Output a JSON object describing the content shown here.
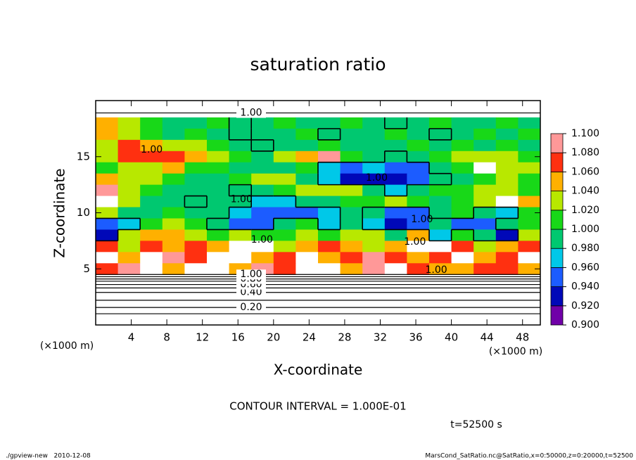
{
  "chart_data": {
    "type": "contour",
    "title": "saturation ratio",
    "x_label": "X-coordinate",
    "y_label": "Z-coordinate",
    "x_unit": "(×1000 m)",
    "y_unit": "(×1000 m)",
    "xlim": [
      0,
      50
    ],
    "ylim": [
      0,
      20
    ],
    "xticks": [
      4,
      8,
      12,
      16,
      20,
      24,
      28,
      32,
      36,
      40,
      44,
      48
    ],
    "yticks": [
      5,
      10,
      15
    ],
    "x": [
      1.25,
      3.75,
      6.25,
      8.75,
      11.25,
      13.75,
      16.25,
      18.75,
      21.25,
      23.75,
      26.25,
      28.75,
      31.25,
      33.75,
      36.25,
      38.75,
      41.25,
      43.75,
      46.25,
      48.75
    ],
    "y": [
      18,
      17,
      16,
      15,
      14,
      13,
      12,
      11,
      10,
      9,
      8,
      7,
      6,
      5
    ],
    "values": [
      [
        1.05,
        1.03,
        1.01,
        1.0,
        1.0,
        1.01,
        0.99,
        1.0,
        1.01,
        1.0,
        1.0,
        1.01,
        1.0,
        0.99,
        1.0,
        1.01,
        1.0,
        1.0,
        1.01,
        1.0
      ],
      [
        1.06,
        1.04,
        1.02,
        1.0,
        1.01,
        1.0,
        0.99,
        1.0,
        1.0,
        1.01,
        0.99,
        1.0,
        1.0,
        1.01,
        1.0,
        0.99,
        1.0,
        1.01,
        1.0,
        1.01
      ],
      [
        1.04,
        1.07,
        1.05,
        1.03,
        1.03,
        1.01,
        1.0,
        0.99,
        1.0,
        1.0,
        1.01,
        1.0,
        1.0,
        1.0,
        1.01,
        1.0,
        1.02,
        1.0,
        1.01,
        1.0
      ],
      [
        1.03,
        1.07,
        1.08,
        1.07,
        1.06,
        1.03,
        1.01,
        1.0,
        1.03,
        1.05,
        1.09,
        1.01,
        1.0,
        0.99,
        1.0,
        1.01,
        1.03,
        1.04,
        1.03,
        1.02
      ],
      [
        1.02,
        1.03,
        1.04,
        1.05,
        1.02,
        1.01,
        1.0,
        1.0,
        1.0,
        1.02,
        0.97,
        0.96,
        0.97,
        0.95,
        0.96,
        1.0,
        1.01,
        1.12,
        1.03,
        1.04
      ],
      [
        1.05,
        1.04,
        1.03,
        1.01,
        1.0,
        1.0,
        1.02,
        1.03,
        1.03,
        1.0,
        0.98,
        0.94,
        0.93,
        0.94,
        0.96,
        0.99,
        1.0,
        1.02,
        1.03,
        1.01
      ],
      [
        1.09,
        1.04,
        1.01,
        1.0,
        1.0,
        1.0,
        0.99,
        1.0,
        1.02,
        1.03,
        1.04,
        1.03,
        1.0,
        0.98,
        1.0,
        1.01,
        1.02,
        1.04,
        1.03,
        1.02
      ],
      [
        1.12,
        1.04,
        1.0,
        1.0,
        0.99,
        1.0,
        1.0,
        0.98,
        0.97,
        1.0,
        1.0,
        1.01,
        1.02,
        1.03,
        1.01,
        1.0,
        1.01,
        1.03,
        1.12,
        1.05
      ],
      [
        1.03,
        1.0,
        1.0,
        1.01,
        1.0,
        1.0,
        0.98,
        0.96,
        0.95,
        0.96,
        0.97,
        1.0,
        0.99,
        0.95,
        0.96,
        1.0,
        1.01,
        0.99,
        0.98,
        1.02
      ],
      [
        0.95,
        0.97,
        1.02,
        1.03,
        1.01,
        0.99,
        0.95,
        0.96,
        1.0,
        1.02,
        0.98,
        1.0,
        0.97,
        0.93,
        0.96,
        0.99,
        0.96,
        0.95,
        1.0,
        1.01
      ],
      [
        0.93,
        1.04,
        1.05,
        1.06,
        1.03,
        1.02,
        1.04,
        1.01,
        1.02,
        1.03,
        1.02,
        1.04,
        1.03,
        1.0,
        1.06,
        0.98,
        1.02,
        0.99,
        0.94,
        1.04
      ],
      [
        1.07,
        1.03,
        1.08,
        1.06,
        1.07,
        1.06,
        1.12,
        1.12,
        1.03,
        1.05,
        1.08,
        1.06,
        1.04,
        1.06,
        1.12,
        1.12,
        1.07,
        1.04,
        1.05,
        1.07
      ],
      [
        1.12,
        1.06,
        1.12,
        1.09,
        1.08,
        1.12,
        1.12,
        1.05,
        1.07,
        1.12,
        1.06,
        1.07,
        1.09,
        1.08,
        1.06,
        1.08,
        1.12,
        1.06,
        1.08,
        1.12
      ],
      [
        1.08,
        1.1,
        1.12,
        1.06,
        1.12,
        1.12,
        1.06,
        1.09,
        1.07,
        1.12,
        1.12,
        1.05,
        1.09,
        1.12,
        1.08,
        1.05,
        1.06,
        1.07,
        1.07,
        1.06
      ]
    ],
    "contour_level": 1.0,
    "contours": [
      {
        "level": 0.1,
        "label": null,
        "z": 1.0
      },
      {
        "level": 0.2,
        "label": "0.20",
        "z": 1.56
      },
      {
        "level": 0.3,
        "label": null,
        "z": 2.2
      },
      {
        "level": 0.4,
        "label": "0.40",
        "z": 2.9
      },
      {
        "level": 0.5,
        "label": null,
        "z": 3.3
      },
      {
        "level": 0.6,
        "label": "0.60",
        "z": 3.6
      },
      {
        "level": 0.7,
        "label": null,
        "z": 3.9
      },
      {
        "level": 0.8,
        "label": "0.80",
        "z": 4.1
      },
      {
        "level": 0.9,
        "label": null,
        "z": 4.3
      },
      {
        "level": 1.0,
        "label": "1.00",
        "z": 4.5
      },
      {
        "level": 1.0,
        "label": "1.00",
        "z": 18.9
      }
    ],
    "field_labels": [
      {
        "text": "1.00",
        "x": 6.3,
        "z": 15.6
      },
      {
        "text": "1.00",
        "x": 16.4,
        "z": 11.2
      },
      {
        "text": "1.00",
        "x": 18.7,
        "z": 7.6
      },
      {
        "text": "1.00",
        "x": 31.6,
        "z": 13.1
      },
      {
        "text": "1.00",
        "x": 36.7,
        "z": 9.4
      },
      {
        "text": "1.00",
        "x": 35.9,
        "z": 7.4
      },
      {
        "text": "1.00",
        "x": 38.3,
        "z": 4.9
      }
    ],
    "colorbar": {
      "levels": [
        {
          "value": 0.9,
          "label": "0.900"
        },
        {
          "value": 0.92,
          "label": "0.920"
        },
        {
          "value": 0.94,
          "label": "0.940"
        },
        {
          "value": 0.96,
          "label": "0.960"
        },
        {
          "value": 0.98,
          "label": "0.980"
        },
        {
          "value": 1.0,
          "label": "1.000"
        },
        {
          "value": 1.02,
          "label": "1.020"
        },
        {
          "value": 1.04,
          "label": "1.040"
        },
        {
          "value": 1.06,
          "label": "1.060"
        },
        {
          "value": 1.08,
          "label": "1.080"
        },
        {
          "value": 1.1,
          "label": "1.100"
        }
      ],
      "colors": [
        "#7000a8",
        "#0008b8",
        "#1c5cff",
        "#00c8e8",
        "#00c870",
        "#18d818",
        "#b8e800",
        "#ffb000",
        "#ff3010",
        "#ff9898"
      ]
    },
    "contour_interval": "CONTOUR INTERVAL = 1.000E-01",
    "time_label": "t=52500 s",
    "footer_left": "./gpview-new   2010-12-08",
    "footer_right": "MarsCond_SatRatio.nc@SatRatio,x=0:50000,z=0:20000,t=52500"
  }
}
